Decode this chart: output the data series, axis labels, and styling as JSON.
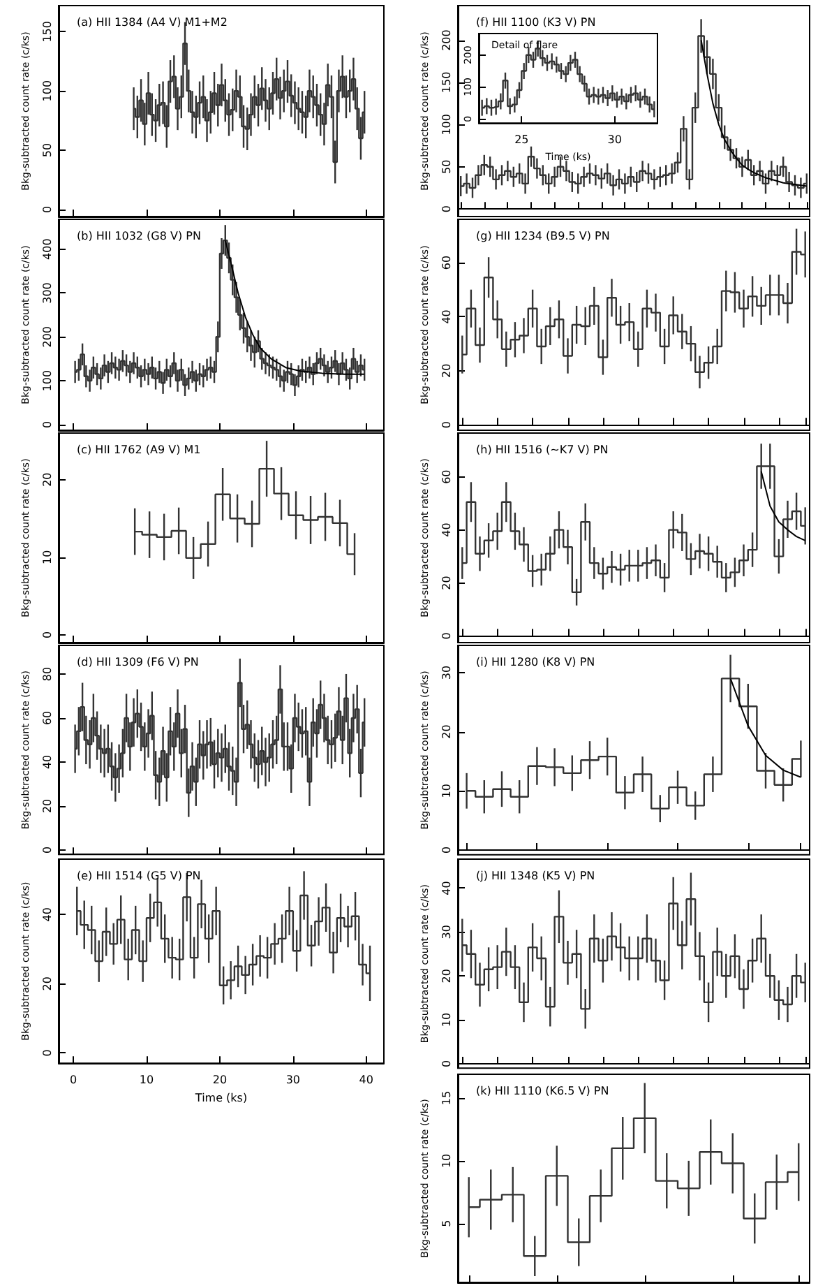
{
  "chart_data": [
    {
      "type": "step",
      "title": "(a) HII 1384 (A4 V) M1+M2",
      "ylabel": "Bkg-subtracted count rate (c/ks)",
      "xlim": [
        -2,
        42.4
      ],
      "xticks": [
        0,
        10,
        20,
        30,
        40
      ],
      "ylim": [
        -6,
        172
      ],
      "yticks": [
        0,
        50,
        100,
        150
      ],
      "tick_labels": "y",
      "x": [
        8.25,
        8.75,
        9.25,
        9.75,
        10.25,
        10.75,
        11.25,
        11.75,
        12.25,
        12.75,
        13.25,
        13.75,
        14.25,
        14.75,
        15.25,
        15.75,
        16.25,
        16.75,
        17.25,
        17.75,
        18.25,
        18.75,
        19.25,
        19.75,
        20.25,
        20.75,
        21.25,
        21.75,
        22.25,
        22.75,
        23.25,
        23.75,
        24.25,
        24.75,
        25.25,
        25.75,
        26.25,
        26.75,
        27.25,
        27.75,
        28.25,
        28.75,
        29.25,
        29.75,
        30.25,
        30.75,
        31.25,
        31.75,
        32.25,
        32.75,
        33.25,
        33.75,
        34.25,
        34.75,
        35.25,
        35.75,
        36.25,
        36.75,
        37.25,
        37.75,
        38.25,
        38.75,
        39.25,
        39.75
      ],
      "series": [
        {
          "type": "step",
          "color": "#333333",
          "values": [
            85,
            78,
            92,
            72,
            98,
            80,
            75,
            88,
            90,
            70,
            108,
            112,
            85,
            95,
            140,
            100,
            82,
            78,
            90,
            95,
            75,
            82,
            98,
            88,
            105,
            92,
            80,
            84,
            100,
            95,
            70,
            68,
            80,
            95,
            88,
            102,
            92,
            85,
            98,
            110,
            94,
            100,
            108,
            96,
            90,
            85,
            82,
            78,
            100,
            95,
            88,
            80,
            72,
            105,
            95,
            40,
            100,
            112,
            95,
            100,
            110,
            85,
            60,
            82
          ],
          "errors": [
            18,
            18,
            18,
            18,
            18,
            18,
            18,
            18,
            18,
            18,
            18,
            18,
            18,
            18,
            18,
            18,
            18,
            18,
            18,
            18,
            18,
            18,
            18,
            18,
            18,
            18,
            18,
            18,
            18,
            18,
            18,
            18,
            18,
            18,
            18,
            18,
            18,
            18,
            18,
            18,
            18,
            18,
            18,
            18,
            18,
            18,
            18,
            18,
            18,
            18,
            18,
            18,
            18,
            18,
            18,
            18,
            18,
            18,
            18,
            18,
            18,
            18,
            18,
            18
          ]
        }
      ]
    },
    {
      "type": "step",
      "title": "(b) HII 1032 (G8 V) PN",
      "ylabel": "Bkg-subtracted count rate (c/ks)",
      "xlim": [
        -2,
        42.4
      ],
      "xticks": [
        0,
        10,
        20,
        30,
        40
      ],
      "ylim": [
        -13,
        468
      ],
      "yticks": [
        0,
        100,
        200,
        300,
        400
      ],
      "tick_labels": "y",
      "x": [
        0.25,
        0.75,
        1.25,
        1.75,
        2.25,
        2.75,
        3.25,
        3.75,
        4.25,
        4.75,
        5.25,
        5.75,
        6.25,
        6.75,
        7.25,
        7.75,
        8.25,
        8.75,
        9.25,
        9.75,
        10.25,
        10.75,
        11.25,
        11.75,
        12.25,
        12.75,
        13.25,
        13.75,
        14.25,
        14.75,
        15.25,
        15.75,
        16.25,
        16.75,
        17.25,
        17.75,
        18.25,
        18.75,
        19.25,
        19.75,
        20.25,
        20.75,
        21.25,
        21.75,
        22.25,
        22.75,
        23.25,
        23.75,
        24.25,
        24.75,
        25.25,
        25.75,
        26.25,
        26.75,
        27.25,
        27.75,
        28.25,
        28.75,
        29.25,
        29.75,
        30.25,
        30.75,
        31.25,
        31.75,
        32.25,
        32.75,
        33.25,
        33.75,
        34.25,
        34.75,
        35.25,
        35.75,
        36.25,
        36.75,
        37.25,
        37.75,
        38.25,
        38.75,
        39.25,
        39.75
      ],
      "series": [
        {
          "type": "step",
          "color": "#333333",
          "values": [
            120,
            125,
            160,
            110,
            100,
            130,
            115,
            105,
            135,
            120,
            140,
            130,
            125,
            145,
            135,
            120,
            140,
            130,
            110,
            125,
            115,
            130,
            105,
            120,
            95,
            125,
            110,
            140,
            100,
            125,
            90,
            105,
            120,
            100,
            115,
            110,
            125,
            130,
            120,
            200,
            390,
            420,
            380,
            330,
            290,
            250,
            220,
            200,
            180,
            165,
            190,
            150,
            140,
            135,
            130,
            125,
            110,
            100,
            120,
            115,
            90,
            110,
            125,
            120,
            130,
            115,
            140,
            150,
            135,
            120,
            130,
            145,
            115,
            140,
            125,
            105,
            150,
            120,
            135,
            125
          ],
          "errors": [
            25,
            25,
            25,
            25,
            25,
            25,
            25,
            25,
            25,
            25,
            25,
            25,
            25,
            25,
            25,
            25,
            25,
            25,
            25,
            25,
            25,
            25,
            25,
            25,
            25,
            25,
            25,
            25,
            25,
            25,
            25,
            25,
            25,
            25,
            25,
            25,
            25,
            25,
            25,
            35,
            35,
            35,
            35,
            35,
            35,
            35,
            35,
            35,
            35,
            35,
            25,
            25,
            25,
            25,
            25,
            25,
            25,
            25,
            25,
            25,
            25,
            25,
            25,
            25,
            25,
            25,
            25,
            25,
            25,
            25,
            25,
            25,
            25,
            25,
            25,
            25,
            25,
            25,
            25,
            25
          ]
        },
        {
          "type": "line",
          "color": "#000000",
          "x": [
            20.75,
            21.5,
            22.5,
            23.5,
            24.5,
            25.5,
            27,
            29,
            31,
            34,
            37,
            39.75
          ],
          "values": [
            420,
            370,
            300,
            245,
            205,
            175,
            150,
            130,
            122,
            117,
            115,
            115
          ]
        }
      ]
    },
    {
      "type": "step",
      "title": "(c) HII 1762 (A9 V) M1",
      "ylabel": "Bkg-subtracted count rate (c/ks)",
      "xlim": [
        -2,
        42.4
      ],
      "xticks": [
        0,
        10,
        20,
        30,
        40
      ],
      "ylim": [
        -1,
        26
      ],
      "yticks": [
        0,
        10,
        20
      ],
      "tick_labels": "y",
      "x": [
        8.4,
        10.4,
        12.4,
        14.4,
        16.4,
        18.4,
        20.4,
        22.4,
        24.4,
        26.4,
        28.4,
        30.4,
        32.4,
        34.4,
        36.4,
        38.4
      ],
      "series": [
        {
          "type": "step",
          "color": "#333333",
          "values": [
            13.3,
            12.9,
            12.6,
            13.4,
            9.9,
            11.7,
            18.1,
            15.0,
            14.3,
            21.4,
            18.2,
            15.4,
            14.8,
            15.2,
            14.4,
            10.4
          ],
          "errors": [
            3,
            3,
            3,
            3,
            2.7,
            2.9,
            3.4,
            3.1,
            3,
            3.6,
            3.4,
            3.1,
            3.1,
            3.1,
            3,
            2.7
          ]
        }
      ]
    },
    {
      "type": "step",
      "title": "(d) HII 1309 (F6 V) PN",
      "ylabel": "Bkg-subtracted count rate (c/ks)",
      "xlim": [
        -2,
        42.4
      ],
      "xticks": [
        0,
        10,
        20,
        30,
        40
      ],
      "ylim": [
        -2,
        93
      ],
      "yticks": [
        0,
        20,
        40,
        60,
        80
      ],
      "tick_labels": "y",
      "x": [
        0.25,
        0.75,
        1.25,
        1.75,
        2.25,
        2.75,
        3.25,
        3.75,
        4.25,
        4.75,
        5.25,
        5.75,
        6.25,
        6.75,
        7.25,
        7.75,
        8.25,
        8.75,
        9.25,
        9.75,
        10.25,
        10.75,
        11.25,
        11.75,
        12.25,
        12.75,
        13.25,
        13.75,
        14.25,
        14.75,
        15.25,
        15.75,
        16.25,
        16.75,
        17.25,
        17.75,
        18.25,
        18.75,
        19.25,
        19.75,
        20.25,
        20.75,
        21.25,
        21.75,
        22.25,
        22.75,
        23.25,
        23.75,
        24.25,
        24.75,
        25.25,
        25.75,
        26.25,
        26.75,
        27.25,
        27.75,
        28.25,
        28.75,
        29.25,
        29.75,
        30.25,
        30.75,
        31.25,
        31.75,
        32.25,
        32.75,
        33.25,
        33.75,
        34.25,
        34.75,
        35.25,
        35.75,
        36.25,
        36.75,
        37.25,
        37.75,
        38.25,
        38.75,
        39.25,
        39.75
      ],
      "series": [
        {
          "type": "step",
          "color": "#333333",
          "values": [
            46,
            54,
            65,
            50,
            48,
            60,
            52,
            46,
            44,
            46,
            38,
            33,
            37,
            44,
            60,
            47,
            58,
            62,
            56,
            47,
            53,
            61,
            34,
            31,
            45,
            33,
            54,
            47,
            62,
            44,
            55,
            26,
            38,
            31,
            48,
            43,
            48,
            49,
            39,
            44,
            42,
            46,
            38,
            36,
            31,
            76,
            55,
            57,
            48,
            42,
            39,
            45,
            40,
            42,
            48,
            50,
            73,
            47,
            47,
            37,
            60,
            56,
            53,
            54,
            31,
            58,
            53,
            66,
            60,
            50,
            48,
            51,
            63,
            50,
            69,
            44,
            60,
            64,
            35,
            58
          ],
          "errors": [
            11,
            11,
            11,
            11,
            11,
            11,
            11,
            11,
            11,
            11,
            11,
            11,
            11,
            11,
            11,
            11,
            11,
            11,
            11,
            11,
            11,
            11,
            11,
            11,
            11,
            11,
            11,
            11,
            11,
            11,
            11,
            11,
            11,
            11,
            11,
            11,
            11,
            11,
            11,
            11,
            11,
            11,
            11,
            11,
            11,
            11,
            11,
            11,
            11,
            11,
            11,
            11,
            11,
            11,
            11,
            11,
            11,
            11,
            11,
            11,
            11,
            11,
            11,
            11,
            11,
            11,
            11,
            11,
            11,
            11,
            11,
            11,
            11,
            11,
            11,
            11,
            11,
            11,
            11,
            11
          ]
        }
      ]
    },
    {
      "type": "step",
      "title": "(e) HII 1514 (G5 V) PN",
      "xlabel": "Time (ks)",
      "ylabel": "Bkg-subtracted count rate (c/ks)",
      "xlim": [
        -2,
        42.4
      ],
      "xticks": [
        0,
        10,
        20,
        30,
        40
      ],
      "ylim": [
        -3,
        56
      ],
      "yticks": [
        0,
        20,
        40
      ],
      "x": [
        0.5,
        1.5,
        2.5,
        3.5,
        4.5,
        5.5,
        6.5,
        7.5,
        8.5,
        9.5,
        10.5,
        11.5,
        12.5,
        13.5,
        14.5,
        15.5,
        16.5,
        17.5,
        18.5,
        19.5,
        20.5,
        21.5,
        22.5,
        23.5,
        24.5,
        25.5,
        26.5,
        27.5,
        28.5,
        29.5,
        30.5,
        31.5,
        32.5,
        33.5,
        34.5,
        35.5,
        36.5,
        37.5,
        38.5,
        39.5,
        40.5
      ],
      "series": [
        {
          "type": "step",
          "color": "#333333",
          "values": [
            41,
            37,
            35.5,
            26.5,
            35,
            31.5,
            38.5,
            27,
            35.5,
            26.5,
            39,
            43.5,
            33,
            27.5,
            27,
            45,
            27.5,
            43,
            33,
            41,
            19.5,
            21,
            25,
            22.5,
            25.5,
            28,
            27.5,
            31.5,
            33,
            41,
            29.5,
            45.5,
            31,
            38,
            42,
            29,
            39,
            36.5,
            39.5,
            25.5,
            23
          ],
          "errors": [
            7,
            7,
            7,
            6,
            7,
            6,
            7,
            6,
            7,
            6,
            7,
            7,
            7,
            6,
            6,
            7,
            6,
            7,
            7,
            7,
            5.5,
            5.5,
            6,
            5.5,
            6,
            6,
            6,
            6,
            7,
            7,
            6,
            7,
            6,
            7,
            7,
            6,
            7,
            6,
            7,
            6,
            8
          ]
        }
      ]
    },
    {
      "type": "step",
      "title": "(f) HII 1100 (K3 V) PN",
      "ylabel": "Bkg-subtracted count rate (c/ks)",
      "ylim": [
        -9,
        241
      ],
      "yticks": [
        0,
        50,
        100,
        150,
        200
      ],
      "tick_labels": "y",
      "categories": [
        null,
        null,
        null,
        null,
        null,
        null,
        null,
        null,
        null,
        null,
        null,
        null,
        null,
        null,
        null,
        null,
        null,
        null,
        null,
        null,
        null,
        null,
        null,
        null,
        null,
        null,
        null,
        null,
        null,
        null,
        null,
        null,
        null,
        null,
        null,
        null,
        null,
        null,
        null,
        null,
        null,
        null,
        null,
        null,
        null,
        null,
        null,
        null,
        null,
        null,
        null,
        null,
        null,
        null,
        null,
        null,
        null,
        null,
        null,
        null
      ],
      "series": [
        {
          "type": "step",
          "color": "#333333",
          "values": [
            27,
            30,
            25,
            40,
            52,
            50,
            35,
            40,
            45,
            38,
            42,
            30,
            62,
            48,
            40,
            30,
            38,
            50,
            45,
            32,
            30,
            38,
            42,
            40,
            36,
            42,
            28,
            35,
            30,
            38,
            32,
            45,
            42,
            35,
            38,
            40,
            42,
            55,
            95,
            35,
            120,
            205,
            180,
            160,
            120,
            85,
            70,
            60,
            50,
            58,
            40,
            45,
            30,
            45,
            40,
            50,
            32,
            28,
            25,
            30
          ],
          "errors": [
            12,
            12,
            12,
            12,
            12,
            12,
            12,
            12,
            12,
            12,
            12,
            12,
            12,
            12,
            12,
            12,
            12,
            12,
            12,
            12,
            12,
            12,
            12,
            12,
            12,
            12,
            12,
            12,
            12,
            12,
            12,
            12,
            12,
            12,
            12,
            12,
            12,
            12,
            15,
            12,
            18,
            20,
            20,
            18,
            16,
            14,
            13,
            12,
            12,
            12,
            12,
            12,
            12,
            12,
            12,
            12,
            12,
            12,
            12,
            12
          ]
        },
        {
          "type": "line",
          "color": "#000000",
          "values": [
            null,
            null,
            null,
            null,
            null,
            null,
            null,
            null,
            null,
            null,
            null,
            null,
            null,
            null,
            null,
            null,
            null,
            null,
            null,
            null,
            null,
            null,
            null,
            null,
            null,
            null,
            null,
            null,
            null,
            null,
            null,
            null,
            null,
            null,
            null,
            null,
            null,
            null,
            null,
            null,
            null,
            200,
            160,
            125,
            100,
            82,
            70,
            60,
            52,
            47,
            43,
            40,
            37,
            35,
            33,
            31,
            30,
            29,
            28,
            27
          ]
        }
      ]
    },
    {
      "type": "step",
      "title": "Detail of flare",
      "xlabel": "Time (ks)",
      "xlim": [
        22.7,
        32.3
      ],
      "xticks": [
        25,
        30
      ],
      "ylim": [
        -13,
        267
      ],
      "yticks": [
        0,
        100,
        200
      ],
      "x": [
        22.875,
        23.125,
        23.375,
        23.625,
        23.875,
        24.125,
        24.375,
        24.625,
        24.875,
        25.125,
        25.375,
        25.625,
        25.875,
        26.125,
        26.375,
        26.625,
        26.875,
        27.125,
        27.375,
        27.625,
        27.875,
        28.125,
        28.375,
        28.625,
        28.875,
        29.125,
        29.375,
        29.625,
        29.875,
        30.125,
        30.375,
        30.625,
        30.875,
        31.125,
        31.375,
        31.625,
        31.875,
        32.125
      ],
      "series": [
        {
          "type": "step",
          "color": "#333333",
          "values": [
            35,
            40,
            35,
            38,
            55,
            120,
            40,
            45,
            90,
            150,
            200,
            185,
            220,
            190,
            175,
            180,
            170,
            150,
            140,
            175,
            185,
            140,
            110,
            70,
            75,
            70,
            75,
            65,
            80,
            60,
            70,
            55,
            75,
            80,
            60,
            70,
            45,
            30
          ],
          "errors": [
            25,
            25,
            25,
            25,
            25,
            25,
            25,
            25,
            25,
            25,
            25,
            25,
            25,
            25,
            25,
            25,
            25,
            25,
            25,
            25,
            25,
            25,
            25,
            25,
            25,
            25,
            25,
            25,
            25,
            25,
            25,
            25,
            25,
            25,
            25,
            25,
            25,
            25
          ]
        }
      ]
    },
    {
      "type": "step",
      "title": "(g) HII 1234 (B9.5 V) PN",
      "ylabel": "Bkg-subtracted count rate (c/ks)",
      "ylim": [
        -2,
        76
      ],
      "yticks": [
        0,
        20,
        40,
        60
      ],
      "tick_labels": "y",
      "categories": [
        null,
        null,
        null,
        null,
        null,
        null,
        null,
        null,
        null,
        null,
        null,
        null,
        null,
        null,
        null,
        null,
        null,
        null,
        null,
        null,
        null,
        null,
        null,
        null,
        null,
        null,
        null,
        null,
        null,
        null,
        null,
        null,
        null,
        null,
        null,
        null,
        null,
        null,
        null,
        null
      ],
      "series": [
        {
          "type": "step",
          "color": "#333333",
          "values": [
            26,
            43,
            29.5,
            54.5,
            39,
            28,
            31.5,
            33,
            43,
            29,
            36.5,
            39,
            25.5,
            37,
            36.5,
            44,
            25,
            47,
            37,
            38,
            28,
            43,
            41.5,
            29,
            40.5,
            34.5,
            30,
            19.5,
            23,
            29,
            49.5,
            49,
            43,
            47.5,
            44,
            48,
            48,
            45,
            64,
            63
          ],
          "errors": [
            7,
            7,
            6.5,
            7.5,
            7,
            6.5,
            6.5,
            6.5,
            7,
            6.5,
            7,
            7,
            6.5,
            7,
            7,
            7,
            6.5,
            7,
            7,
            7,
            6.5,
            7,
            7,
            6.5,
            7,
            6.5,
            6.5,
            6,
            6,
            6.5,
            7.5,
            7.5,
            7,
            7.5,
            7,
            7.5,
            7.5,
            7.5,
            8.5,
            8.5
          ]
        }
      ]
    },
    {
      "type": "step",
      "title": "(h) HII 1516 (~K7 V) PN",
      "ylabel": "Bkg-subtracted count rate (c/ks)",
      "ylim": [
        -2.5,
        76.5
      ],
      "yticks": [
        0,
        20,
        40,
        60
      ],
      "tick_labels": "y",
      "categories": [
        null,
        null,
        null,
        null,
        null,
        null,
        null,
        null,
        null,
        null,
        null,
        null,
        null,
        null,
        null,
        null,
        null,
        null,
        null,
        null,
        null,
        null,
        null,
        null,
        null,
        null,
        null,
        null,
        null,
        null,
        null,
        null,
        null,
        null,
        null,
        null,
        null,
        null,
        null,
        null
      ],
      "series": [
        {
          "type": "step",
          "color": "#333333",
          "values": [
            27.5,
            50.5,
            31,
            36,
            39.5,
            50.5,
            39.5,
            34.5,
            24.5,
            25,
            31,
            40,
            33.5,
            16.5,
            43,
            27.5,
            23.5,
            26,
            25,
            26.5,
            26.5,
            27.5,
            28.5,
            22,
            40,
            39,
            29,
            32,
            31,
            28,
            22,
            24,
            28.5,
            32.5,
            64,
            64,
            30,
            44,
            47,
            41.5
          ],
          "errors": [
            6,
            7.5,
            6.5,
            6.5,
            7,
            7.5,
            7,
            6.5,
            6,
            6,
            6.5,
            7,
            6.5,
            5,
            7,
            6,
            6,
            6,
            6,
            6,
            6,
            6,
            6,
            5.5,
            7,
            7,
            6,
            6.5,
            6.5,
            6,
            5.5,
            5.5,
            6,
            6.5,
            8.5,
            8.5,
            6.5,
            7,
            7,
            7
          ]
        },
        {
          "type": "line",
          "color": "#000000",
          "values": [
            null,
            null,
            null,
            null,
            null,
            null,
            null,
            null,
            null,
            null,
            null,
            null,
            null,
            null,
            null,
            null,
            null,
            null,
            null,
            null,
            null,
            null,
            null,
            null,
            null,
            null,
            null,
            null,
            null,
            null,
            null,
            null,
            null,
            null,
            62,
            49,
            43,
            40,
            37.5,
            36
          ]
        }
      ]
    },
    {
      "type": "step",
      "title": "(i) HII 1280 (K8 V) PN",
      "ylabel": "Bkg-subtracted count rate (c/ks)",
      "ylim": [
        -0.8,
        34.6
      ],
      "yticks": [
        0,
        10,
        20,
        30
      ],
      "tick_labels": "y",
      "categories": [
        null,
        null,
        null,
        null,
        null,
        null,
        null,
        null,
        null,
        null,
        null,
        null,
        null,
        null,
        null,
        null,
        null,
        null,
        null,
        null
      ],
      "series": [
        {
          "type": "step",
          "color": "#333333",
          "values": [
            10,
            9,
            10.3,
            9,
            14.2,
            14,
            13,
            15.2,
            15.8,
            9.7,
            12.8,
            7,
            10.6,
            7.5,
            12.8,
            29,
            24.3,
            13.4,
            11,
            15.4
          ],
          "errors": [
            3,
            2.8,
            3,
            2.8,
            3.2,
            3.2,
            3,
            3.2,
            3.2,
            2.8,
            3,
            2.3,
            2.8,
            2.4,
            3,
            4,
            3.8,
            3,
            2.8,
            3.1
          ]
        },
        {
          "type": "line",
          "color": "#000000",
          "values": [
            null,
            null,
            null,
            null,
            null,
            null,
            null,
            null,
            null,
            null,
            null,
            null,
            null,
            null,
            null,
            29,
            21,
            16,
            13.5,
            12.3
          ]
        }
      ]
    },
    {
      "type": "step",
      "title": "(j) HII 1348 (K5 V) PN",
      "ylabel": "Bkg-subtracted count rate (c/ks)",
      "ylim": [
        -1,
        46.6
      ],
      "yticks": [
        0,
        10,
        20,
        30,
        40
      ],
      "tick_labels": "y",
      "categories": [
        null,
        null,
        null,
        null,
        null,
        null,
        null,
        null,
        null,
        null,
        null,
        null,
        null,
        null,
        null,
        null,
        null,
        null,
        null,
        null,
        null,
        null,
        null,
        null,
        null,
        null,
        null,
        null,
        null,
        null,
        null,
        null,
        null,
        null,
        null,
        null,
        null,
        null,
        null,
        null
      ],
      "series": [
        {
          "type": "step",
          "color": "#333333",
          "values": [
            27,
            25,
            18,
            21.5,
            22,
            25.5,
            22,
            14,
            26.5,
            24,
            13,
            33.5,
            23,
            25,
            12.5,
            28.5,
            23.5,
            29,
            26.5,
            24,
            24,
            28.5,
            23.5,
            19,
            36.5,
            27,
            37.5,
            24.5,
            14,
            25.5,
            20,
            24.5,
            17,
            23.5,
            28.5,
            20,
            14.5,
            13.5,
            20,
            18.5
          ],
          "errors": [
            6,
            5.5,
            5,
            5,
            5,
            5.5,
            5,
            4.5,
            5.5,
            5,
            4.5,
            6,
            5,
            5.5,
            4.5,
            5.5,
            5,
            5.5,
            5.5,
            5,
            5,
            5.5,
            5,
            4.5,
            6,
            5.5,
            6,
            5.5,
            4.5,
            5.5,
            5,
            5,
            4.5,
            5,
            5.5,
            5,
            4.5,
            4,
            5,
            4.5
          ]
        }
      ]
    },
    {
      "type": "step",
      "title": "(k) HII 1110 (K6.5 V) PN",
      "ylabel": "Bkg-subtracted count rate (c/ks)",
      "ylim": [
        0.3,
        16.9
      ],
      "yticks": [
        5,
        10,
        15
      ],
      "tick_labels": "y",
      "categories": [
        null,
        null,
        null,
        null,
        null,
        null,
        null,
        null,
        null,
        null,
        null,
        null,
        null,
        null,
        null,
        null
      ],
      "series": [
        {
          "type": "step",
          "color": "#333333",
          "values": [
            6.3,
            6.9,
            7.3,
            2.4,
            8.8,
            3.5,
            7.2,
            11,
            13.4,
            8.4,
            7.8,
            10.7,
            9.8,
            5.4,
            8.3,
            9.1
          ],
          "errors": [
            2.4,
            2.4,
            2.2,
            1.6,
            2.4,
            1.9,
            2.1,
            2.5,
            2.8,
            2.2,
            2.2,
            2.6,
            2.4,
            2,
            2.2,
            2.3
          ]
        }
      ]
    }
  ]
}
